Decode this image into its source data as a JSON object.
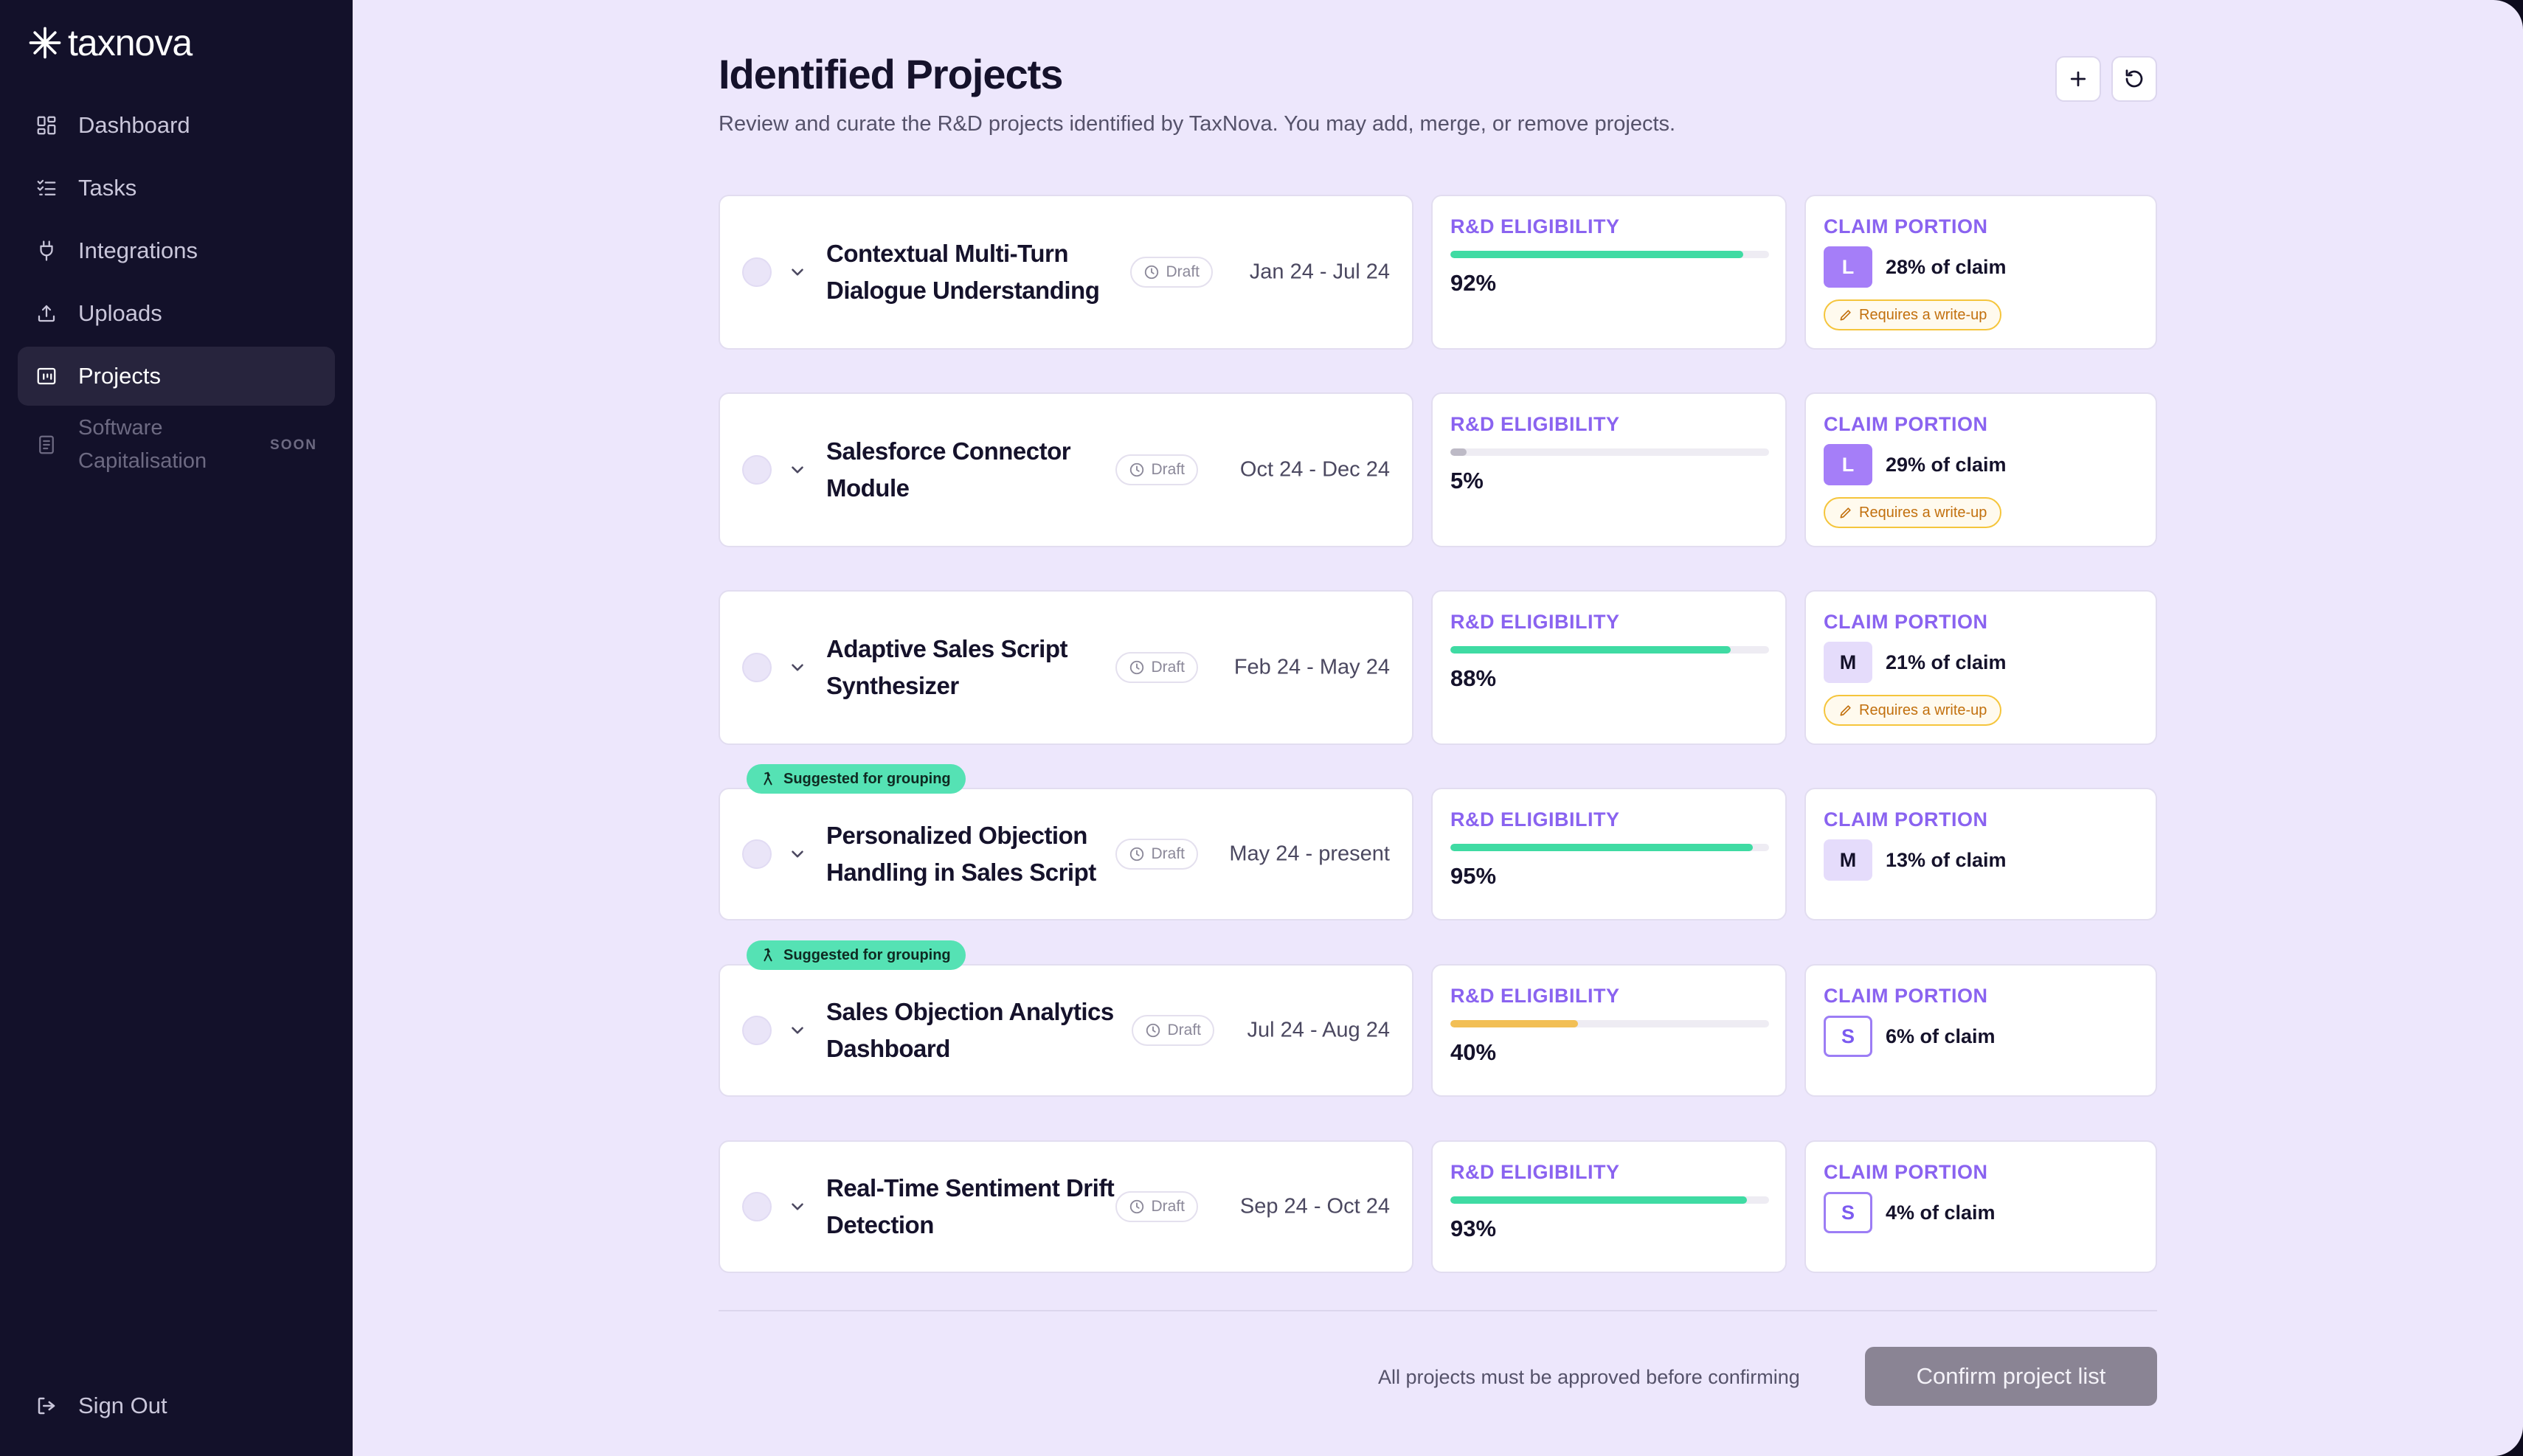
{
  "app": {
    "logo_text": "taxnova"
  },
  "sidebar": {
    "items": [
      {
        "label": "Dashboard",
        "icon": "dashboard-icon"
      },
      {
        "label": "Tasks",
        "icon": "tasks-icon"
      },
      {
        "label": "Integrations",
        "icon": "plug-icon"
      },
      {
        "label": "Uploads",
        "icon": "upload-icon"
      },
      {
        "label": "Projects",
        "icon": "projects-icon",
        "active": true
      },
      {
        "label": "Software Capitalisation",
        "icon": "document-icon",
        "badge": "SOON",
        "disabled": true
      }
    ],
    "sign_out": "Sign Out"
  },
  "header": {
    "title": "Identified Projects",
    "subtitle": "Review and curate the R&D projects identified by TaxNova. You may add, merge, or remove projects.",
    "add_icon": "plus-icon",
    "refresh_icon": "refresh-icon"
  },
  "labels": {
    "eligibility": "R&D ELIGIBILITY",
    "claim": "CLAIM PORTION",
    "draft": "Draft",
    "writeup": "Requires a write-up",
    "suggested": "Suggested for grouping"
  },
  "colors": {
    "high": "#3fdba3",
    "medium": "#f2bf55",
    "low": "#bdbac6",
    "accent": "#8a63f0"
  },
  "projects": [
    {
      "title": "Contextual Multi-Turn Dialogue Understanding",
      "status": "Draft",
      "dates": "Jan 24 - Jul 24",
      "eligibility": 92,
      "eligibility_text": "92%",
      "size": "L",
      "claim_text": "28% of claim",
      "writeup": true,
      "suggested": false
    },
    {
      "title": "Salesforce Connector Module",
      "status": "Draft",
      "dates": "Oct 24 - Dec 24",
      "eligibility": 5,
      "eligibility_text": "5%",
      "size": "L",
      "claim_text": "29% of claim",
      "writeup": true,
      "suggested": false
    },
    {
      "title": "Adaptive Sales Script Synthesizer",
      "status": "Draft",
      "dates": "Feb 24 - May 24",
      "eligibility": 88,
      "eligibility_text": "88%",
      "size": "M",
      "claim_text": "21% of claim",
      "writeup": true,
      "suggested": false
    },
    {
      "title": "Personalized Objection Handling in Sales Script",
      "status": "Draft",
      "dates": "May 24 - present",
      "eligibility": 95,
      "eligibility_text": "95%",
      "size": "M",
      "claim_text": "13% of claim",
      "writeup": false,
      "suggested": true
    },
    {
      "title": "Sales Objection Analytics Dashboard",
      "status": "Draft",
      "dates": "Jul 24 - Aug 24",
      "eligibility": 40,
      "eligibility_text": "40%",
      "size": "S",
      "claim_text": "6% of claim",
      "writeup": false,
      "suggested": true
    },
    {
      "title": "Real-Time Sentiment Drift Detection",
      "status": "Draft",
      "dates": "Sep 24 - Oct 24",
      "eligibility": 93,
      "eligibility_text": "93%",
      "size": "S",
      "claim_text": "4% of claim",
      "writeup": false,
      "suggested": false
    }
  ],
  "footer": {
    "note": "All projects must be approved before confirming",
    "confirm_label": "Confirm project list"
  }
}
